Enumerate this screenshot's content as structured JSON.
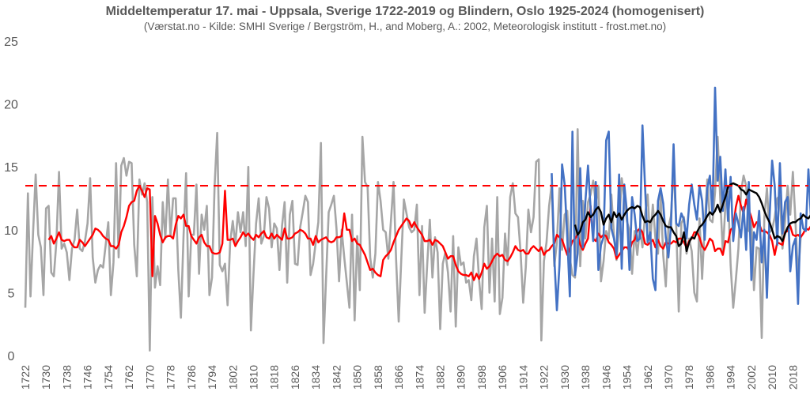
{
  "chart_data": {
    "type": "line",
    "title": "Middeltemperatur 17. mai - Uppsala, Sverige 1722-2019 og Blindern, Oslo 1925-2024 (homogenisert)",
    "subtitle": "(Værstat.no - Kilde: SMHI Sverige / Bergström, H., and Moberg, A.: 2002, Meteorologisk institutt - frost.met.no)",
    "xlabel": "",
    "ylabel": "",
    "ylim": [
      0,
      25
    ],
    "yticks": [
      0,
      5,
      10,
      15,
      20,
      25
    ],
    "xlim": [
      1722,
      2024
    ],
    "xtick_labels": [
      "1722",
      "1730",
      "1738",
      "1746",
      "1754",
      "1762",
      "1770",
      "1778",
      "1786",
      "1794",
      "1802",
      "1810",
      "1818",
      "1826",
      "1834",
      "1842",
      "1850",
      "1858",
      "1866",
      "1874",
      "1882",
      "1890",
      "1898",
      "1906",
      "1914",
      "1922",
      "1930",
      "1938",
      "1946",
      "1954",
      "1962",
      "1970",
      "1978",
      "1986",
      "1994",
      "2002",
      "2010",
      "2018"
    ],
    "grid": false,
    "legend": "none",
    "reference_line": {
      "value": 13.5,
      "color": "#ff0000",
      "style": "dashed"
    },
    "colors": {
      "uppsala": "#a6a6a6",
      "uppsala_smooth": "#ff0000",
      "oslo": "#4472c4",
      "oslo_smooth": "#000000",
      "text": "#595959"
    },
    "series": [
      {
        "key": "uppsala",
        "color": "#a6a6a6",
        "x_start": 1722,
        "values": [
          3.8,
          12.9,
          4.7,
          9.8,
          14.4,
          9.6,
          8.6,
          4.8,
          11.7,
          11.9,
          6.6,
          6.3,
          9.1,
          14.6,
          8.5,
          8.9,
          8.2,
          6.0,
          8.5,
          9.2,
          11.6,
          8.5,
          8.3,
          9.1,
          10.5,
          14.1,
          7.8,
          5.8,
          6.8,
          7.2,
          7.0,
          8.8,
          10.6,
          4.8,
          7.4,
          15.3,
          7.8,
          15.1,
          15.7,
          14.3,
          15.4,
          15.3,
          8.8,
          6.3,
          14.0,
          12.8,
          13.7,
          12.2,
          0.4,
          12.6,
          5.4,
          7.1,
          5.6,
          12.2,
          9.3,
          14.0,
          9.5,
          12.5,
          12.5,
          6.8,
          3.0,
          9.4,
          14.5,
          4.7,
          9.6,
          9.6,
          13.6,
          6.5,
          11.2,
          10.0,
          11.9,
          4.8,
          6.2,
          13.5,
          17.7,
          7.2,
          6.7,
          7.3,
          4.0,
          9.0,
          10.7,
          8.8,
          11.4,
          9.8,
          11.4,
          8.7,
          15.0,
          2.0,
          6.5,
          10.5,
          12.5,
          8.9,
          9.5,
          12.6,
          11.7,
          8.6,
          10.5,
          10.1,
          6.8,
          10.3,
          12.2,
          5.8,
          11.2,
          12.3,
          7.3,
          7.2,
          10.2,
          11.4,
          12.7,
          12.2,
          6.4,
          7.3,
          9.0,
          10.6,
          16.9,
          1.0,
          6.2,
          11.4,
          12.0,
          12.7,
          10.1,
          5.9,
          10.0,
          7.8,
          5.8,
          3.8,
          11.2,
          2.8,
          9.5,
          5.2,
          17.4,
          13.8,
          13.4,
          7.8,
          6.2,
          8.1,
          13.8,
          12.3,
          10.0,
          9.8,
          7.7,
          10.7,
          13.8,
          7.6,
          2.7,
          7.7,
          12.4,
          11.3,
          10.2,
          9.8,
          10.0,
          12.0,
          4.8,
          10.3,
          3.4,
          7.3,
          10.8,
          6.2,
          9.4,
          8.2,
          2.1,
          7.3,
          8.2,
          6.6,
          3.5,
          9.5,
          2.3,
          8.6,
          7.2,
          7.4,
          5.8,
          6.0,
          4.4,
          7.9,
          9.3,
          6.0,
          3.7,
          10.2,
          11.9,
          5.0,
          9.3,
          4.3,
          12.6,
          3.3,
          4.6,
          9.7,
          7.2,
          12.6,
          13.7,
          11.3,
          11.0,
          8.2,
          4.2,
          7.0,
          11.6,
          9.8,
          11.0,
          15.4,
          15.6,
          1.2,
          7.5,
          9.0,
          11.9,
          13.6,
          7.1,
          9.0,
          13.3,
          8.4,
          11.2,
          11.5,
          7.7,
          6.4,
          6.2,
          18.0,
          7.1,
          12.3,
          9.3,
          12.2,
          12.8,
          13.9,
          12.1,
          13.5,
          5.9,
          7.5,
          9.9,
          9.3,
          12.8,
          9.6,
          7.6,
          10.3,
          14.1,
          12.5,
          10.7,
          9.9,
          6.5,
          9.9,
          8.0,
          10.1,
          8.6,
          11.2,
          12.8,
          9.1,
          12.0,
          9.3,
          8.1,
          12.8,
          8.0,
          5.5,
          10.2,
          11.1,
          15.0,
          10.5,
          3.5,
          10.5,
          11.0,
          8.1,
          9.3,
          8.3,
          5.0,
          4.3,
          10.9,
          6.1,
          10.3,
          14.0,
          10.8,
          10.6,
          13.0,
          17.4,
          12.5,
          8.2,
          12.0,
          13.0,
          7.2,
          3.8,
          6.0,
          8.5,
          13.0,
          14.3,
          13.5,
          9.9,
          10.7,
          5.2,
          8.6,
          8.5,
          1.4,
          11.0,
          13.3,
          9.8,
          10.0,
          11.0,
          12.5,
          12.7,
          8.5,
          10.7,
          13.5,
          11.2,
          14.6,
          10.7,
          6.1,
          9.4
        ]
      },
      {
        "key": "uppsala_smooth",
        "color": "#ff0000",
        "x_start": 1731,
        "values": [
          9.2,
          9.5,
          8.9,
          9.3,
          9.8,
          9.2,
          9.1,
          9.2,
          9.2,
          8.8,
          8.6,
          8.6,
          9.2,
          9.0,
          8.7,
          9.0,
          9.3,
          9.6,
          10.1,
          10.0,
          9.8,
          9.5,
          9.3,
          9.2,
          8.7,
          8.7,
          8.5,
          8.8,
          9.8,
          10.3,
          11.0,
          11.9,
          12.2,
          12.3,
          13.1,
          13.5,
          13.1,
          12.6,
          13.3,
          13.2,
          6.3,
          11.1,
          10.5,
          9.6,
          9.0,
          9.4,
          9.5,
          9.5,
          9.3,
          10.4,
          11.1,
          10.9,
          11.2,
          10.3,
          10.3,
          9.5,
          9.2,
          8.9,
          9.4,
          9.6,
          9.0,
          8.7,
          8.7,
          8.2,
          8.1,
          8.1,
          8.2,
          8.9,
          13.1,
          9.2,
          9.2,
          9.3,
          8.7,
          9.1,
          9.4,
          9.8,
          9.5,
          9.7,
          9.4,
          9.2,
          9.6,
          9.4,
          9.7,
          9.9,
          9.4,
          9.3,
          9.7,
          9.3,
          9.6,
          9.4,
          9.2,
          10.1,
          9.3,
          9.3,
          9.4,
          9.7,
          9.8,
          10.0,
          9.9,
          9.7,
          9.3,
          9.3,
          8.8,
          9.5,
          9.0,
          9.2,
          9.3,
          9.4,
          9.1,
          9.0,
          9.1,
          9.4,
          9.4,
          9.5,
          11.3,
          10.0,
          10.0,
          9.1,
          9.3,
          8.9,
          8.8,
          8.4,
          8.0,
          7.4,
          6.8,
          6.9,
          6.6,
          6.4,
          6.3,
          7.6,
          7.9,
          8.1,
          8.4,
          9.0,
          9.5,
          10.0,
          10.3,
          10.6,
          10.9,
          10.7,
          10.2,
          10.6,
          10.2,
          9.9,
          9.6,
          9.1,
          9.1,
          9.2,
          8.8,
          9.2,
          9.1,
          8.9,
          8.7,
          8.2,
          7.7,
          7.9,
          7.9,
          7.2,
          6.7,
          6.5,
          6.4,
          6.4,
          6.3,
          6.6,
          6.0,
          6.5,
          6.1,
          6.6,
          7.3,
          6.9,
          7.1,
          7.5,
          7.9,
          8.1,
          7.9,
          8.0,
          7.6,
          7.5,
          7.8,
          8.2,
          8.7,
          8.4,
          8.3,
          8.4,
          8.1,
          8.1,
          8.5,
          8.7,
          8.5,
          8.3,
          8.6,
          8.0,
          8.3,
          8.4,
          8.7,
          8.9,
          9.6,
          9.4,
          9.2,
          8.6,
          8.0,
          8.5,
          9.1,
          9.3,
          9.6,
          8.8,
          8.4,
          8.9,
          9.3,
          11.9,
          9.3,
          9.1,
          9.7,
          9.4,
          9.6,
          9.5,
          9.0,
          8.8,
          8.5,
          7.7,
          8.0,
          8.3,
          8.6,
          8.6,
          8.3,
          9.0,
          9.2,
          9.9,
          10.1,
          9.8,
          8.9,
          8.8,
          9.0,
          9.2,
          8.6,
          9.2,
          8.7,
          8.5,
          9.0,
          8.9,
          8.9,
          9.1,
          9.0,
          9.3,
          9.3,
          9.0,
          8.6,
          9.1,
          9.3,
          9.8,
          9.8,
          9.4,
          8.7,
          8.4,
          8.8,
          9.3,
          9.1,
          8.3,
          8.5,
          8.5,
          8.0,
          9.1,
          9.0,
          10.0,
          10.2,
          11.8,
          12.7,
          11.9,
          11.3,
          12.4,
          11.6,
          11.0,
          10.2,
          10.6,
          10.5,
          9.9,
          9.9,
          9.8,
          9.6,
          9.1,
          8.0,
          9.0,
          8.9,
          8.8,
          9.8,
          9.9,
          10.3,
          9.6,
          9.5,
          9.6,
          9.4,
          9.7,
          10.1,
          10.0,
          10.3,
          10.5,
          10.9,
          11.0,
          11.4,
          11.4
        ]
      },
      {
        "key": "oslo",
        "color": "#4472c4",
        "x_start": 1925,
        "values": [
          14.5,
          7.8,
          3.6,
          7.2,
          15.2,
          13.6,
          9.4,
          4.7,
          17.8,
          6.4,
          8.1,
          14.9,
          8.6,
          12.3,
          15.1,
          11.7,
          9.1,
          13.8,
          6.8,
          8.8,
          9.4,
          17.1,
          17.8,
          10.1,
          9.3,
          8.0,
          14.4,
          6.9,
          13.6,
          11.4,
          6.8,
          12.6,
          11.2,
          9.1,
          9.3,
          18.3,
          13.4,
          9.0,
          9.8,
          6.1,
          5.2,
          12.3,
          13.3,
          12.1,
          9.4,
          7.8,
          10.3,
          16.8,
          10.5,
          10.3,
          11.3,
          10.8,
          9.3,
          12.0,
          13.6,
          12.0,
          10.8,
          13.5,
          12.3,
          9.2,
          13.3,
          14.3,
          11.2,
          21.3,
          13.9,
          15.8,
          11.5,
          14.8,
          10.7,
          14.2,
          9.1,
          11.3,
          10.5,
          9.4,
          11.8,
          8.4,
          13.8,
          6.0,
          9.8,
          9.2,
          11.5,
          7.4,
          10.0,
          4.6,
          10.9,
          15.5,
          13.5,
          8.8,
          15.3,
          9.7,
          12.2,
          12.6,
          6.7,
          8.7,
          9.3,
          4.1,
          11.3,
          10.1,
          9.9,
          14.8,
          10.8,
          10.2,
          16.1,
          9.8,
          6.3,
          12.2,
          14.4,
          13.7,
          11.1,
          17.4,
          9.3,
          9.2,
          8.8,
          11.1,
          9.3,
          10.4
        ]
      },
      {
        "key": "oslo_smooth",
        "color": "#000000",
        "x_start": 1934,
        "values": [
          10.4,
          9.6,
          9.9,
          10.6,
          10.8,
          11.4,
          11.0,
          11.2,
          11.6,
          11.8,
          11.4,
          10.4,
          10.9,
          11.2,
          10.6,
          11.4,
          11.0,
          11.3,
          10.8,
          11.2,
          11.5,
          11.7,
          11.8,
          11.7,
          11.9,
          11.8,
          11.1,
          10.6,
          10.7,
          10.6,
          11.0,
          11.2,
          11.5,
          11.2,
          10.7,
          10.3,
          10.2,
          10.2,
          9.8,
          9.5,
          8.7,
          8.9,
          9.8,
          8.3,
          9.0,
          9.4,
          9.3,
          9.8,
          10.2,
          10.4,
          10.7,
          11.1,
          11.4,
          11.2,
          11.5,
          12.0,
          11.4,
          12.0,
          12.6,
          13.4,
          13.6,
          13.7,
          13.6,
          13.5,
          13.2,
          13.1,
          12.8,
          13.2,
          13.1,
          13.0,
          12.9,
          12.6,
          12.1,
          11.5,
          11.0,
          10.6,
          10.0,
          9.3,
          9.5,
          9.4,
          9.1,
          9.7,
          10.2,
          10.5,
          10.6,
          10.6,
          10.8,
          10.9,
          11.2,
          11.0,
          10.9,
          11.2,
          11.0,
          11.8,
          11.1,
          10.4,
          10.3,
          10.6,
          10.2,
          10.3,
          10.8,
          10.5,
          10.4,
          10.1,
          10.3,
          10.9,
          10.8,
          11.0,
          11.2,
          11.7,
          12.2,
          12.5,
          12.4,
          12.1,
          12.2,
          11.6,
          11.8
        ]
      }
    ]
  }
}
